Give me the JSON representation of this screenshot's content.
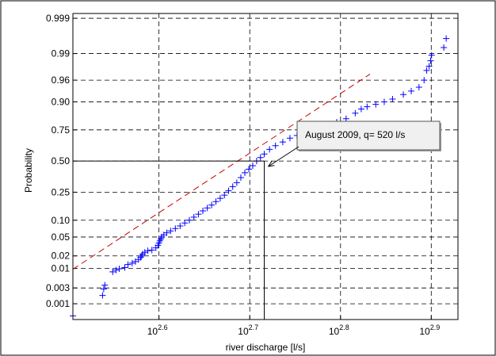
{
  "chart_data": {
    "type": "scatter",
    "title": "",
    "xlabel": "river discharge [l/s]",
    "ylabel": "Probability",
    "x_scale": "log10",
    "y_scale": "normal-probability",
    "xlim": [
      320,
      850
    ],
    "ylim": [
      0.0003,
      0.9993
    ],
    "grid": true,
    "x_ticks": [
      {
        "value": 398.1,
        "base": "10",
        "exp": "2.6"
      },
      {
        "value": 501.2,
        "base": "10",
        "exp": "2.7"
      },
      {
        "value": 631.0,
        "base": "10",
        "exp": "2.8"
      },
      {
        "value": 794.3,
        "base": "10",
        "exp": "2.9"
      }
    ],
    "y_ticks": [
      {
        "value": 0.001,
        "label": "0.001"
      },
      {
        "value": 0.003,
        "label": "0.003"
      },
      {
        "value": 0.01,
        "label": "0.01"
      },
      {
        "value": 0.02,
        "label": "0.02"
      },
      {
        "value": 0.05,
        "label": "0.05"
      },
      {
        "value": 0.1,
        "label": "0.10"
      },
      {
        "value": 0.25,
        "label": "0.25"
      },
      {
        "value": 0.5,
        "label": "0.50"
      },
      {
        "value": 0.75,
        "label": "0.75"
      },
      {
        "value": 0.9,
        "label": "0.90"
      },
      {
        "value": 0.96,
        "label": "0.96"
      },
      {
        "value": 0.99,
        "label": "0.99"
      },
      {
        "value": 0.999,
        "label": "0.999"
      }
    ],
    "series": [
      {
        "role": "data",
        "color": "#0000ff",
        "marker": "plus",
        "points": [
          [
            320,
            0.0004
          ],
          [
            345,
            0.0018
          ],
          [
            346,
            0.0028
          ],
          [
            347,
            0.0036
          ],
          [
            354,
            0.0082
          ],
          [
            357,
            0.0091
          ],
          [
            360,
            0.0098
          ],
          [
            365,
            0.0105
          ],
          [
            368,
            0.0125
          ],
          [
            372,
            0.0135
          ],
          [
            375,
            0.0148
          ],
          [
            378,
            0.0165
          ],
          [
            380,
            0.0185
          ],
          [
            381,
            0.02
          ],
          [
            382,
            0.022
          ],
          [
            384,
            0.024
          ],
          [
            387,
            0.026
          ],
          [
            391,
            0.027
          ],
          [
            395,
            0.03
          ],
          [
            397,
            0.034
          ],
          [
            398,
            0.038
          ],
          [
            399,
            0.042
          ],
          [
            400,
            0.046
          ],
          [
            401,
            0.05
          ],
          [
            403,
            0.055
          ],
          [
            406,
            0.06
          ],
          [
            410,
            0.065
          ],
          [
            415,
            0.072
          ],
          [
            420,
            0.08
          ],
          [
            425,
            0.09
          ],
          [
            430,
            0.1
          ],
          [
            435,
            0.112
          ],
          [
            440,
            0.125
          ],
          [
            445,
            0.14
          ],
          [
            450,
            0.155
          ],
          [
            455,
            0.17
          ],
          [
            460,
            0.19
          ],
          [
            465,
            0.21
          ],
          [
            470,
            0.23
          ],
          [
            475,
            0.26
          ],
          [
            480,
            0.29
          ],
          [
            485,
            0.32
          ],
          [
            490,
            0.36
          ],
          [
            495,
            0.4
          ],
          [
            500,
            0.43
          ],
          [
            505,
            0.46
          ],
          [
            510,
            0.5
          ],
          [
            515,
            0.53
          ],
          [
            520,
            0.56
          ],
          [
            527,
            0.6
          ],
          [
            535,
            0.63
          ],
          [
            545,
            0.66
          ],
          [
            555,
            0.69
          ],
          [
            565,
            0.71
          ],
          [
            580,
            0.74
          ],
          [
            595,
            0.76
          ],
          [
            610,
            0.78
          ],
          [
            625,
            0.8
          ],
          [
            640,
            0.82
          ],
          [
            655,
            0.85
          ],
          [
            665,
            0.87
          ],
          [
            675,
            0.88
          ],
          [
            690,
            0.89
          ],
          [
            705,
            0.9
          ],
          [
            720,
            0.91
          ],
          [
            740,
            0.925
          ],
          [
            755,
            0.935
          ],
          [
            770,
            0.945
          ],
          [
            780,
            0.96
          ],
          [
            785,
            0.975
          ],
          [
            790,
            0.98
          ],
          [
            793,
            0.985
          ],
          [
            795,
            0.989
          ],
          [
            820,
            0.993
          ],
          [
            825,
            0.996
          ]
        ]
      },
      {
        "role": "reference-line",
        "color": "#cc0000",
        "style": "dashed",
        "points": [
          [
            320,
            0.0096
          ],
          [
            680,
            0.97
          ]
        ]
      }
    ],
    "annotation": {
      "text": "August 2009, q= 520 l/s",
      "x": 520,
      "y": 0.5
    }
  }
}
